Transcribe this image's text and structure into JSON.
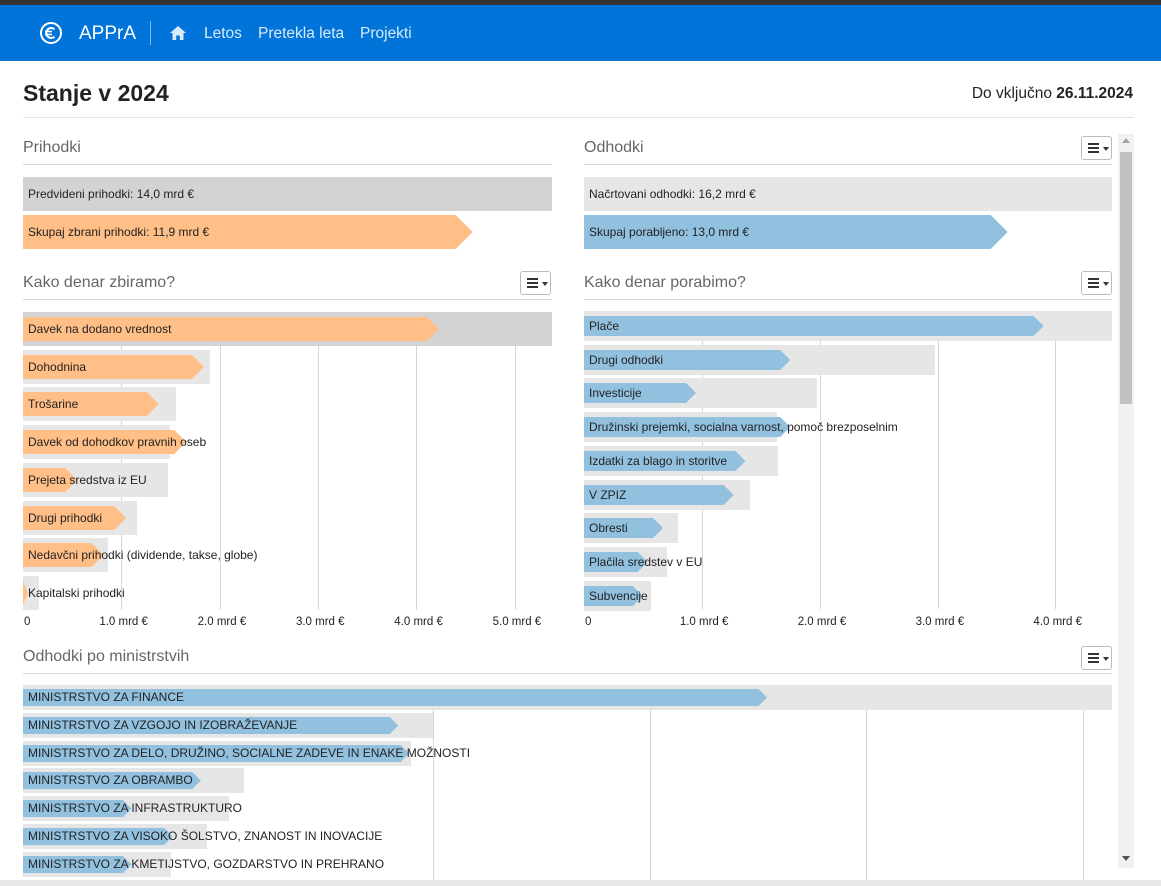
{
  "colors": {
    "navbar": "#0074d9",
    "income": "#ffbf86",
    "expense": "#92c1e0",
    "gray_dark": "#d3d3d3",
    "gray_light": "#e6e6e6"
  },
  "navbar": {
    "brand": "APPrA",
    "brand_icon": "euro-circle-icon",
    "home_icon": "home-icon",
    "links": [
      "Letos",
      "Pretekla leta",
      "Projekti"
    ]
  },
  "header": {
    "title": "Stanje v 2024",
    "date_prefix": "Do vključno",
    "date": "26.11.2024"
  },
  "menu_icon": "hamburger-menu-icon",
  "chart_data": [
    {
      "type": "bar",
      "title": "Prihodki",
      "categories": [
        "Predvideni prihodki: 14,0 mrd €",
        "Skupaj zbrani prihodki: 11,9 mrd €"
      ],
      "values": [
        14.0,
        11.9
      ],
      "unit": "mrd €"
    },
    {
      "type": "bar",
      "title": "Odhodki",
      "categories": [
        "Načrtovani odhodki: 16,2 mrd €",
        "Skupaj porabljeno: 13,0 mrd €"
      ],
      "values": [
        16.2,
        13.0
      ],
      "unit": "mrd €"
    },
    {
      "type": "bar",
      "title": "Kako denar zbiramo?",
      "xlim": [
        0,
        5.38
      ],
      "xticks": [
        "0",
        "1.0 mrd €",
        "2.0 mrd €",
        "3.0 mrd €",
        "4.0 mrd €",
        "5.0 mrd €"
      ],
      "categories": [
        "Davek na dodano vrednost",
        "Dohodnina",
        "Trošarine",
        "Davek od dohodkov pravnih oseb",
        "Prejeta sredstva iz EU",
        "Drugi prihodki",
        "Nedavčni prihodki (dividende, takse, globe)",
        "Kapitalski prihodki"
      ],
      "series": [
        {
          "values": [
            5.38,
            1.9,
            1.56,
            1.49,
            1.47,
            1.16,
            0.86,
            0.16
          ]
        },
        {
          "values": [
            4.23,
            1.84,
            1.38,
            1.66,
            0.55,
            1.05,
            0.82,
            0.05
          ]
        }
      ]
    },
    {
      "type": "bar",
      "title": "Kako denar porabimo?",
      "xlim": [
        0,
        4.48
      ],
      "xticks": [
        "0",
        "1.0 mrd €",
        "2.0 mrd €",
        "3.0 mrd €",
        "4.0 mrd €"
      ],
      "categories": [
        "Plače",
        "Drugi odhodki",
        "Investicije",
        "Družinski prejemki, socialna varnost, pomoč brezposelnim",
        "Izdatki za blago in storitve",
        "V ZPIZ",
        "Obresti",
        "Plačila sredstev v EU",
        "Subvencije"
      ],
      "series": [
        {
          "values": [
            4.48,
            2.98,
            1.98,
            1.64,
            1.65,
            1.41,
            0.8,
            0.7,
            0.57
          ]
        },
        {
          "values": [
            3.9,
            1.75,
            0.95,
            1.75,
            1.37,
            1.27,
            0.67,
            0.54,
            0.5
          ]
        }
      ]
    },
    {
      "type": "bar",
      "title": "Odhodki po ministrstvih",
      "categories": [
        "MINISTRSTVO ZA FINANCE",
        "MINISTRSTVO ZA VZGOJO IN IZOBRAŽEVANJE",
        "MINISTRSTVO ZA DELO, DRUŽINO, SOCIALNE ZADEVE IN ENAKE MOŽNOSTI",
        "MINISTRSTVO ZA OBRAMBO",
        "MINISTRSTVO ZA INFRASTRUKTURO",
        "MINISTRSTVO ZA VISOKO ŠOLSTVO, ZNANOST IN INOVACIJE",
        "MINISTRSTVO ZA KMETIJSTVO, GOZDARSTVO IN PREHRANO"
      ],
      "series": [
        {
          "values": [
            5.02,
            1.89,
            1.79,
            1.02,
            0.95,
            0.85,
            0.68
          ]
        },
        {
          "values": [
            3.43,
            1.73,
            1.78,
            0.82,
            0.5,
            0.69,
            0.5
          ]
        }
      ]
    }
  ]
}
